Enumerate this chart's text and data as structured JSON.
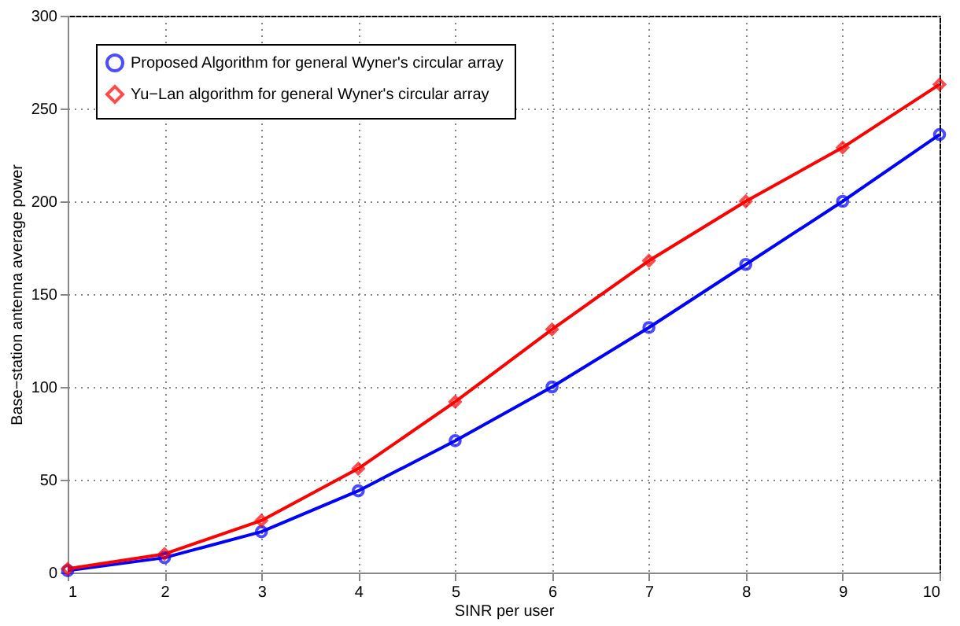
{
  "chart_data": {
    "type": "line",
    "xlabel": "SINR per user",
    "ylabel": "Base−station antenna average power",
    "x": [
      1,
      2,
      3,
      4,
      5,
      6,
      7,
      8,
      9,
      10
    ],
    "series": [
      {
        "name": "Proposed Algorithm for general Wyner's circular array",
        "color": "#0000ff",
        "marker": "circle",
        "values": [
          1,
          8,
          22,
          44,
          71,
          100,
          132,
          166,
          200,
          236
        ]
      },
      {
        "name": "Yu−Lan algorithm for general Wyner's circular array",
        "color": "#ff0000",
        "marker": "diamond",
        "values": [
          2,
          10,
          28,
          56,
          92,
          131,
          168,
          200,
          229,
          263
        ]
      }
    ],
    "xlim": [
      1,
      10
    ],
    "xticks": [
      1,
      2,
      3,
      4,
      5,
      6,
      7,
      8,
      9,
      10
    ],
    "ylim": [
      0,
      300
    ],
    "yticks": [
      0,
      50,
      100,
      150,
      200,
      250,
      300
    ],
    "grid": true,
    "legend": "top left",
    "line_style": "solid"
  }
}
